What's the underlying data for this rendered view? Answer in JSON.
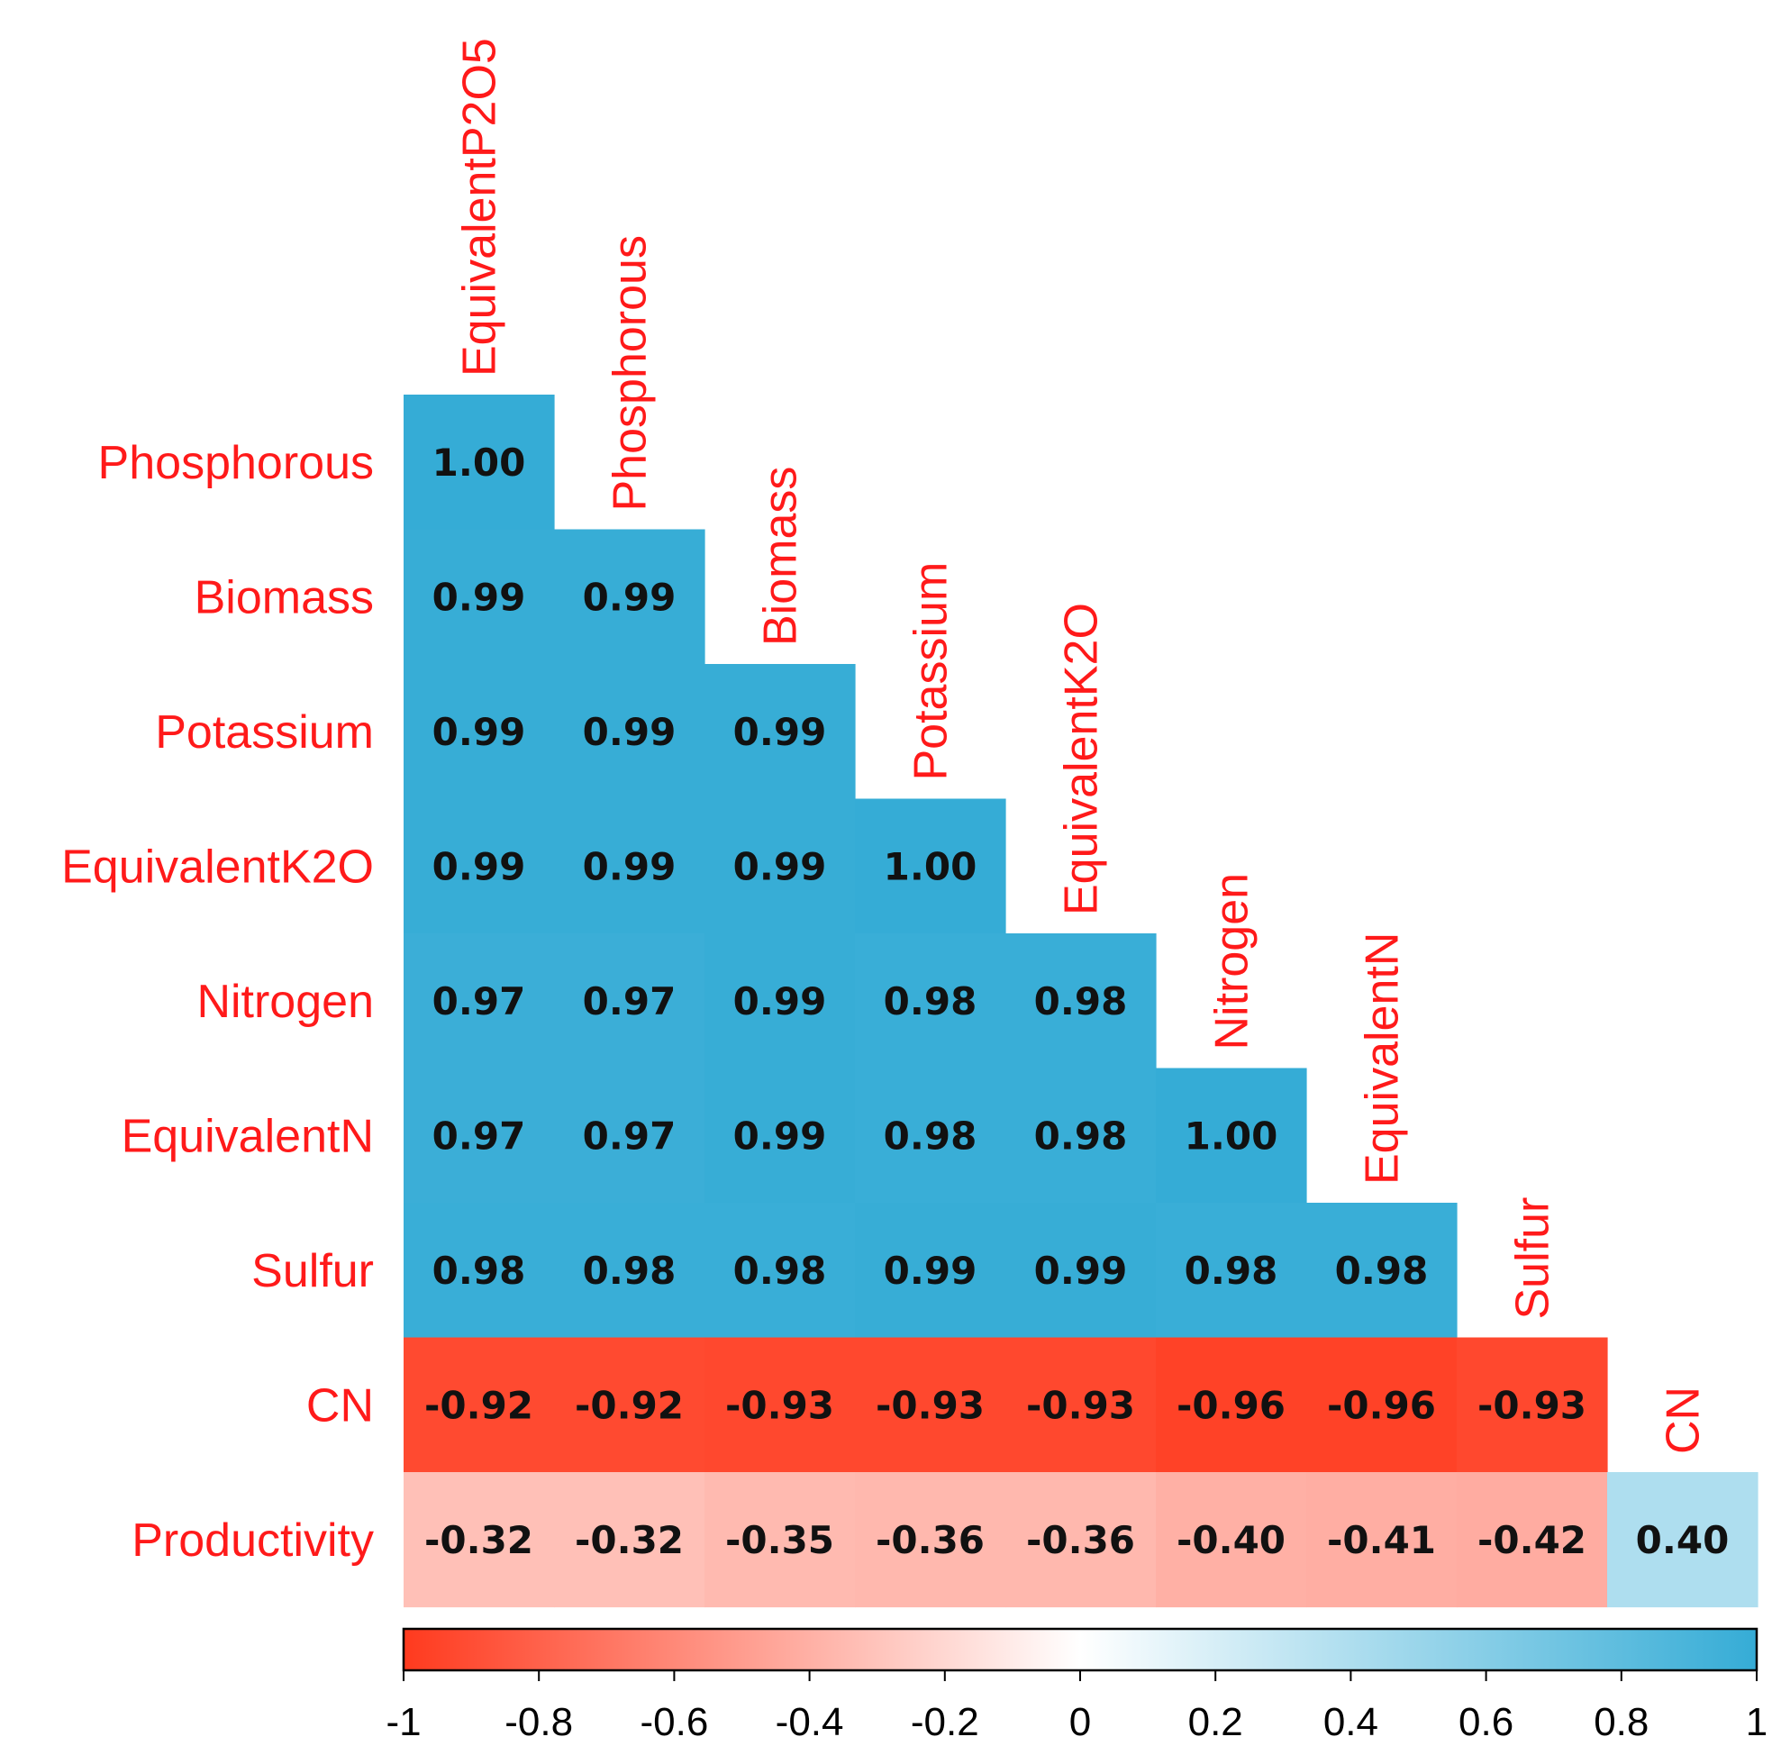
{
  "chart_data": {
    "type": "heatmap",
    "title": "",
    "variables": [
      "EquivalentP2O5",
      "Phosphorous",
      "Biomass",
      "Potassium",
      "EquivalentK2O",
      "Nitrogen",
      "EquivalentN",
      "Sulfur",
      "CN",
      "Productivity"
    ],
    "row_labels": [
      "Phosphorous",
      "Biomass",
      "Potassium",
      "EquivalentK2O",
      "Nitrogen",
      "EquivalentN",
      "Sulfur",
      "CN",
      "Productivity"
    ],
    "column_labels": [
      "EquivalentP2O5",
      "Phosphorous",
      "Biomass",
      "Potassium",
      "EquivalentK2O",
      "Nitrogen",
      "EquivalentN",
      "Sulfur",
      "CN"
    ],
    "matrix_shape": "lower-triangular",
    "values": [
      [
        1.0
      ],
      [
        0.99,
        0.99
      ],
      [
        0.99,
        0.99,
        0.99
      ],
      [
        0.99,
        0.99,
        0.99,
        1.0
      ],
      [
        0.97,
        0.97,
        0.99,
        0.98,
        0.98
      ],
      [
        0.97,
        0.97,
        0.99,
        0.98,
        0.98,
        1.0
      ],
      [
        0.98,
        0.98,
        0.98,
        0.99,
        0.99,
        0.98,
        0.98
      ],
      [
        -0.92,
        -0.92,
        -0.93,
        -0.93,
        -0.93,
        -0.96,
        -0.96,
        -0.93
      ],
      [
        -0.32,
        -0.32,
        -0.35,
        -0.36,
        -0.36,
        -0.4,
        -0.41,
        -0.42,
        0.4
      ]
    ],
    "value_labels": [
      [
        "1.00"
      ],
      [
        "0.99",
        "0.99"
      ],
      [
        "0.99",
        "0.99",
        "0.99"
      ],
      [
        "0.99",
        "0.99",
        "0.99",
        "1.00"
      ],
      [
        "0.97",
        "0.97",
        "0.99",
        "0.98",
        "0.98"
      ],
      [
        "0.97",
        "0.97",
        "0.99",
        "0.98",
        "0.98",
        "1.00"
      ],
      [
        "0.98",
        "0.98",
        "0.98",
        "0.99",
        "0.99",
        "0.98",
        "0.98"
      ],
      [
        "-0.92",
        "-0.92",
        "-0.93",
        "-0.93",
        "-0.93",
        "-0.96",
        "-0.96",
        "-0.93"
      ],
      [
        "-0.32",
        "-0.32",
        "-0.35",
        "-0.36",
        "-0.36",
        "-0.40",
        "-0.41",
        "-0.42",
        "0.40"
      ]
    ],
    "colorscale": {
      "range": [
        -1,
        1
      ],
      "negative_color": "#ff3a1e",
      "mid_color": "#ffffff",
      "positive_color": "#35acd6",
      "ticks": [
        -1,
        -0.8,
        -0.6,
        -0.4,
        -0.2,
        0,
        0.2,
        0.4,
        0.6,
        0.8,
        1
      ],
      "tick_labels": [
        "-1",
        "-0.8",
        "-0.6",
        "-0.4",
        "-0.2",
        "0",
        "0.2",
        "0.4",
        "0.6",
        "0.8",
        "1"
      ],
      "orientation": "horizontal",
      "placement": "bottom"
    },
    "label_color": "#ff1a1a"
  }
}
